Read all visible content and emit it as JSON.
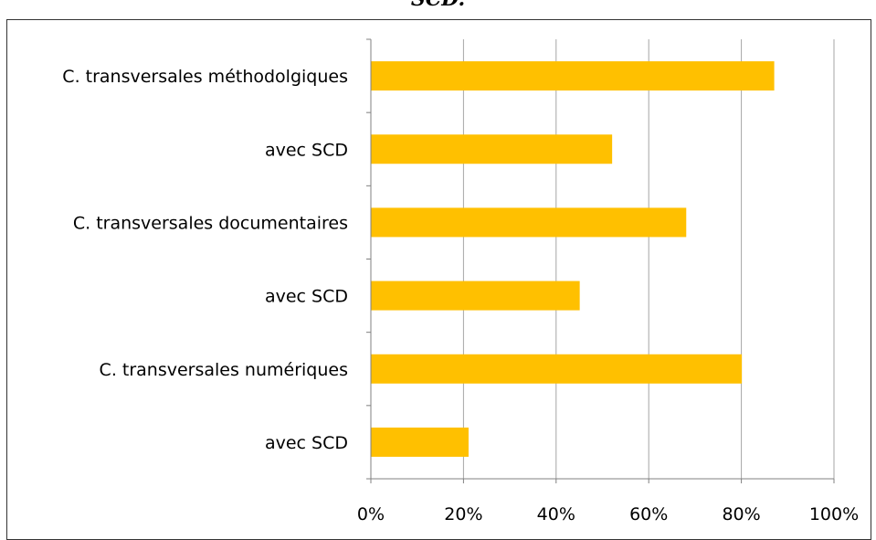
{
  "chart_data": {
    "type": "bar",
    "orientation": "horizontal",
    "title": "SCD.",
    "categories": [
      "C. transversales méthodolgiques",
      "avec SCD",
      "C. transversales documentaires",
      "avec SCD",
      "C. transversales numériques",
      "avec SCD"
    ],
    "values": [
      0.87,
      0.52,
      0.68,
      0.45,
      0.8,
      0.21
    ],
    "xlim": [
      0,
      1
    ],
    "xticks": [
      "0%",
      "20%",
      "40%",
      "60%",
      "80%",
      "100%"
    ],
    "grid": true,
    "bar_color": "#FFC000",
    "grid_color": "#A6A6A6",
    "axis_color": "#808080"
  }
}
